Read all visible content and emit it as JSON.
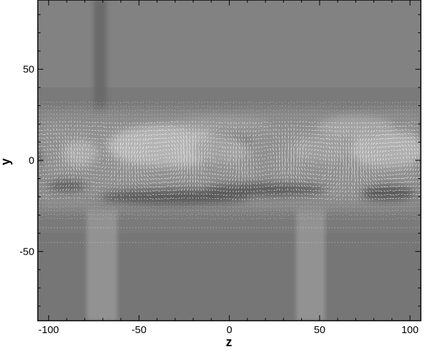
{
  "chart_data": {
    "type": "heatmap",
    "title": "",
    "xlabel": "z",
    "ylabel": "y",
    "xlim": [
      -106,
      106
    ],
    "ylim": [
      -88,
      88
    ],
    "x_ticks": [
      -100,
      -50,
      0,
      50,
      100
    ],
    "x_tick_labels": [
      "-100",
      "-50",
      "0",
      "50",
      "100"
    ],
    "y_ticks": [
      -50,
      0,
      50
    ],
    "y_tick_labels": [
      "-50",
      "0",
      "50"
    ],
    "colormap": "grayscale",
    "background_gray": "#7b7b7b",
    "vector_color": "#ffffff",
    "vector_field_y_range": [
      -32,
      32
    ],
    "grid": false,
    "legend": "none",
    "features": [
      {
        "name": "vertical streak",
        "z_range": [
          -75,
          -68
        ],
        "y_range": [
          18,
          88
        ],
        "level": "dark"
      },
      {
        "name": "vertical streak",
        "z_range": [
          -79,
          -62
        ],
        "y_range": [
          -88,
          -25
        ],
        "level": "light"
      },
      {
        "name": "vertical streak",
        "z_range": [
          37,
          53
        ],
        "y_range": [
          -88,
          -20
        ],
        "level": "light"
      },
      {
        "name": "bright core",
        "z": -35,
        "y": 0,
        "level": "bright"
      },
      {
        "name": "bright core",
        "z": 90,
        "y": 0,
        "level": "bright"
      },
      {
        "name": "bright core",
        "z": -80,
        "y": 2,
        "level": "bright"
      },
      {
        "name": "dark core",
        "z": 0,
        "y": 2,
        "level": "dark"
      },
      {
        "name": "dark core",
        "z": -100,
        "y": 2,
        "level": "dark"
      }
    ]
  }
}
